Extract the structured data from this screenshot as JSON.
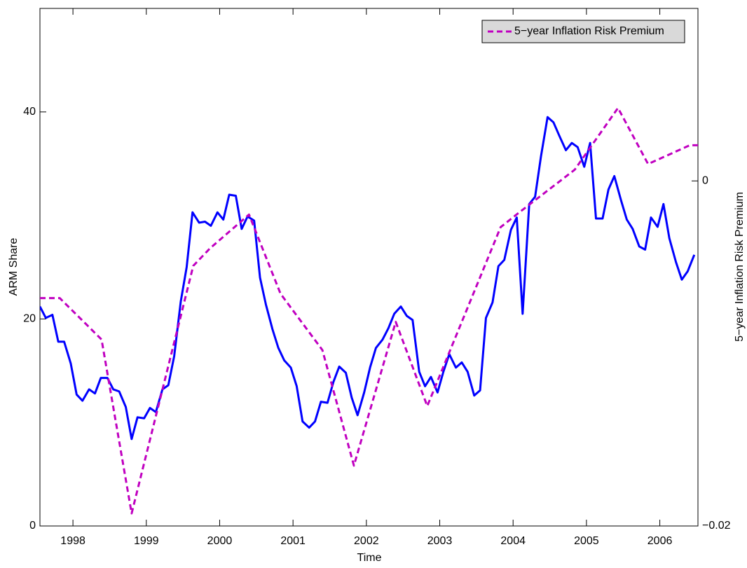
{
  "chart_data": {
    "type": "line",
    "x_label": "Time",
    "y_label": "ARM Share",
    "y2_label": "5−year Inflation Risk Premium",
    "xlim": [
      1997.55,
      2006.52
    ],
    "xticks": [
      1998,
      1999,
      2000,
      2001,
      2002,
      2003,
      2004,
      2005,
      2006
    ],
    "ylim": [
      0,
      50
    ],
    "yticks": [
      0,
      20,
      40
    ],
    "y2lim": [
      -0.02,
      0.01
    ],
    "y2ticks": [
      {
        "value": -0.02,
        "label": "−0.02"
      },
      0
    ],
    "legend": "upper right",
    "series": [
      {
        "color": "#0000ff",
        "style": "solid",
        "x": [
          1997.55,
          1997.63,
          1997.72,
          1997.8,
          1997.88,
          1997.97,
          1998.05,
          1998.13,
          1998.22,
          1998.3,
          1998.38,
          1998.47,
          1998.55,
          1998.63,
          1998.72,
          1998.8,
          1998.88,
          1998.97,
          1999.05,
          1999.13,
          1999.22,
          1999.3,
          1999.38,
          1999.47,
          1999.55,
          1999.63,
          1999.72,
          1999.8,
          1999.88,
          1999.97,
          2000.05,
          2000.13,
          2000.22,
          2000.3,
          2000.38,
          2000.47,
          2000.55,
          2000.63,
          2000.72,
          2000.8,
          2000.88,
          2000.97,
          2001.05,
          2001.13,
          2001.22,
          2001.3,
          2001.38,
          2001.47,
          2001.55,
          2001.63,
          2001.72,
          2001.8,
          2001.88,
          2001.97,
          2002.05,
          2002.13,
          2002.22,
          2002.3,
          2002.38,
          2002.47,
          2002.55,
          2002.63,
          2002.72,
          2002.8,
          2002.88,
          2002.97,
          2003.05,
          2003.13,
          2003.22,
          2003.3,
          2003.38,
          2003.47,
          2003.55,
          2003.63,
          2003.72,
          2003.8,
          2003.88,
          2003.97,
          2004.05,
          2004.13,
          2004.22,
          2004.3,
          2004.38,
          2004.47,
          2004.55,
          2004.63,
          2004.72,
          2004.8,
          2004.88,
          2004.97,
          2005.05,
          2005.13,
          2005.22,
          2005.3,
          2005.38,
          2005.47,
          2005.55,
          2005.63,
          2005.72,
          2005.8,
          2005.88,
          2005.97,
          2006.05,
          2006.13,
          2006.22,
          2006.3,
          2006.38,
          2006.47
        ],
        "values": [
          21.2,
          20.1,
          20.4,
          17.8,
          17.8,
          15.7,
          12.7,
          12.1,
          13.2,
          12.8,
          14.3,
          14.3,
          13.2,
          13.0,
          11.5,
          8.4,
          10.5,
          10.4,
          11.4,
          11.0,
          13.2,
          13.6,
          16.4,
          21.7,
          25.0,
          30.3,
          29.3,
          29.4,
          29.0,
          30.3,
          29.6,
          32.0,
          31.9,
          28.7,
          29.9,
          29.5,
          24.0,
          21.4,
          19.0,
          17.2,
          16.0,
          15.3,
          13.5,
          10.1,
          9.5,
          10.1,
          12.0,
          11.9,
          13.9,
          15.4,
          14.8,
          12.4,
          10.7,
          12.9,
          15.3,
          17.2,
          18.0,
          19.1,
          20.5,
          21.2,
          20.3,
          19.9,
          14.9,
          13.5,
          14.4,
          12.9,
          14.9,
          16.6,
          15.3,
          15.8,
          14.9,
          12.6,
          13.1,
          20.1,
          21.6,
          25.1,
          25.7,
          28.6,
          29.8,
          20.5,
          31.1,
          31.8,
          35.7,
          39.5,
          39.0,
          37.7,
          36.3,
          37.0,
          36.6,
          34.7,
          37.0,
          29.7,
          29.7,
          32.5,
          33.8,
          31.5,
          29.6,
          28.7,
          27.0,
          26.7,
          29.8,
          28.9,
          31.1,
          27.8,
          25.5,
          23.8,
          24.6,
          26.2
        ]
      },
      {
        "name": "5−year Inflation Risk Premium",
        "color": "#c000c0",
        "style": "dashed",
        "axis": "y2",
        "x": [
          1997.55,
          1997.82,
          1998.39,
          1998.8,
          1999.64,
          1999.87,
          2000.4,
          2000.83,
          2001.4,
          2001.83,
          2002.4,
          2002.83,
          2003.83,
          2004.07,
          2004.84,
          2005.43,
          2005.84,
          2006.41,
          2006.52
        ],
        "values": [
          -0.00679,
          -0.00679,
          -0.00919,
          -0.01927,
          -0.00492,
          -0.0039,
          -0.00195,
          -0.00654,
          -0.0098,
          -0.0165,
          -0.00817,
          -0.01305,
          -0.00268,
          -0.00187,
          0.00065,
          0.00423,
          0.00098,
          0.00207,
          0.00207
        ]
      }
    ]
  }
}
